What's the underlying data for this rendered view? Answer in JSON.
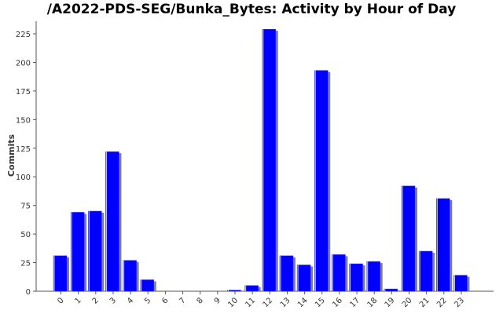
{
  "chart_data": {
    "type": "bar",
    "title": "/A2022-PDS-SEG/Bunka_Bytes: Activity by Hour of Day",
    "xlabel": "",
    "ylabel": "Commits",
    "categories": [
      "0",
      "1",
      "2",
      "3",
      "4",
      "5",
      "6",
      "7",
      "8",
      "9",
      "10",
      "11",
      "12",
      "13",
      "14",
      "15",
      "16",
      "17",
      "18",
      "19",
      "20",
      "21",
      "22",
      "23"
    ],
    "values": [
      31,
      69,
      70,
      122,
      27,
      10,
      0,
      0,
      0,
      0,
      1,
      5,
      229,
      31,
      23,
      193,
      32,
      24,
      26,
      2,
      92,
      35,
      81,
      14
    ],
    "yticks": [
      0,
      25,
      50,
      75,
      100,
      125,
      150,
      175,
      200,
      225
    ],
    "ylim": [
      0,
      236
    ],
    "bar_color": "#0000ff",
    "shadow_color": "#808080",
    "grid": false
  }
}
